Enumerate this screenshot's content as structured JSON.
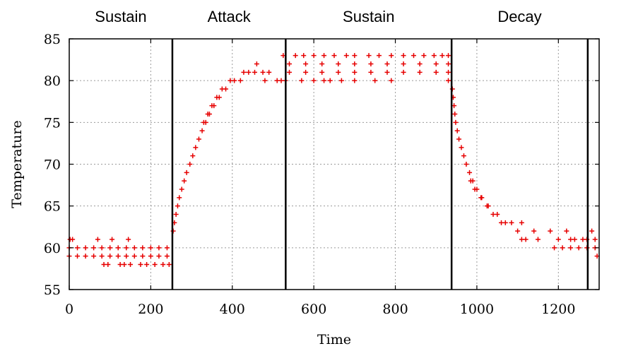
{
  "chart_data": {
    "type": "scatter",
    "title": "",
    "xlabel": "Time",
    "ylabel": "Temperature",
    "xlim": [
      0,
      1300
    ],
    "ylim": [
      55,
      85
    ],
    "xticks": [
      0,
      200,
      400,
      600,
      800,
      1000,
      1200
    ],
    "yticks": [
      55,
      60,
      65,
      70,
      75,
      80,
      85
    ],
    "grid": true,
    "marker": "+",
    "marker_color": "#e60000",
    "phase_boundaries": [
      253,
      531,
      938,
      1272
    ],
    "phases": [
      {
        "label": "Sustain",
        "x_start": 0,
        "x_end": 253
      },
      {
        "label": "Attack",
        "x_start": 253,
        "x_end": 531
      },
      {
        "label": "Sustain",
        "x_start": 531,
        "x_end": 938
      },
      {
        "label": "Decay",
        "x_start": 938,
        "x_end": 1272
      }
    ],
    "series": [
      {
        "points": [
          [
            0,
            60
          ],
          [
            20,
            60
          ],
          [
            40,
            60
          ],
          [
            60,
            60
          ],
          [
            80,
            60
          ],
          [
            100,
            60
          ],
          [
            120,
            60
          ],
          [
            140,
            60
          ],
          [
            160,
            60
          ],
          [
            180,
            60
          ],
          [
            200,
            60
          ],
          [
            220,
            60
          ],
          [
            240,
            60
          ],
          [
            0,
            59
          ],
          [
            20,
            59
          ],
          [
            40,
            59
          ],
          [
            60,
            59
          ],
          [
            80,
            59
          ],
          [
            100,
            59
          ],
          [
            120,
            59
          ],
          [
            140,
            59
          ],
          [
            160,
            59
          ],
          [
            180,
            59
          ],
          [
            200,
            59
          ],
          [
            220,
            59
          ],
          [
            240,
            59
          ],
          [
            2,
            61
          ],
          [
            8,
            61
          ],
          [
            70,
            61
          ],
          [
            105,
            61
          ],
          [
            145,
            61
          ],
          [
            85,
            58
          ],
          [
            95,
            58
          ],
          [
            125,
            58
          ],
          [
            135,
            58
          ],
          [
            150,
            58
          ],
          [
            175,
            58
          ],
          [
            190,
            58
          ],
          [
            210,
            58
          ],
          [
            230,
            58
          ],
          [
            245,
            58
          ],
          [
            255,
            62
          ],
          [
            258,
            63
          ],
          [
            262,
            64
          ],
          [
            266,
            65
          ],
          [
            270,
            66
          ],
          [
            276,
            67
          ],
          [
            282,
            68
          ],
          [
            288,
            69
          ],
          [
            296,
            70
          ],
          [
            303,
            71
          ],
          [
            310,
            72
          ],
          [
            318,
            73
          ],
          [
            326,
            74
          ],
          [
            335,
            75
          ],
          [
            344,
            76
          ],
          [
            355,
            77
          ],
          [
            368,
            78
          ],
          [
            384,
            79
          ],
          [
            405,
            80
          ],
          [
            428,
            81
          ],
          [
            460,
            82
          ],
          [
            330,
            75
          ],
          [
            340,
            76
          ],
          [
            350,
            77
          ],
          [
            362,
            78
          ],
          [
            375,
            79
          ],
          [
            395,
            80
          ],
          [
            420,
            80
          ],
          [
            440,
            81
          ],
          [
            455,
            81
          ],
          [
            475,
            81
          ],
          [
            490,
            81
          ],
          [
            520,
            80
          ],
          [
            510,
            80
          ],
          [
            480,
            80
          ],
          [
            540,
            82
          ],
          [
            580,
            82
          ],
          [
            620,
            82
          ],
          [
            660,
            82
          ],
          [
            700,
            82
          ],
          [
            740,
            82
          ],
          [
            780,
            82
          ],
          [
            820,
            82
          ],
          [
            860,
            82
          ],
          [
            900,
            82
          ],
          [
            930,
            82
          ],
          [
            540,
            81
          ],
          [
            580,
            81
          ],
          [
            620,
            81
          ],
          [
            660,
            81
          ],
          [
            700,
            81
          ],
          [
            740,
            81
          ],
          [
            780,
            81
          ],
          [
            820,
            81
          ],
          [
            860,
            81
          ],
          [
            900,
            81
          ],
          [
            930,
            81
          ],
          [
            525,
            83
          ],
          [
            555,
            83
          ],
          [
            575,
            83
          ],
          [
            600,
            83
          ],
          [
            625,
            83
          ],
          [
            650,
            83
          ],
          [
            680,
            83
          ],
          [
            700,
            83
          ],
          [
            735,
            83
          ],
          [
            760,
            83
          ],
          [
            790,
            83
          ],
          [
            820,
            83
          ],
          [
            845,
            83
          ],
          [
            870,
            83
          ],
          [
            895,
            83
          ],
          [
            915,
            83
          ],
          [
            930,
            83
          ],
          [
            530,
            80
          ],
          [
            570,
            80
          ],
          [
            600,
            80
          ],
          [
            625,
            80
          ],
          [
            640,
            80
          ],
          [
            668,
            80
          ],
          [
            700,
            80
          ],
          [
            750,
            80
          ],
          [
            790,
            80
          ],
          [
            930,
            80
          ],
          [
            940,
            79
          ],
          [
            942,
            78
          ],
          [
            944,
            77
          ],
          [
            946,
            76
          ],
          [
            948,
            75
          ],
          [
            952,
            74
          ],
          [
            956,
            73
          ],
          [
            962,
            72
          ],
          [
            968,
            71
          ],
          [
            974,
            70
          ],
          [
            982,
            69
          ],
          [
            990,
            68
          ],
          [
            1000,
            67
          ],
          [
            1012,
            66
          ],
          [
            1028,
            65
          ],
          [
            1050,
            64
          ],
          [
            1070,
            63
          ],
          [
            1110,
            63
          ],
          [
            1140,
            62
          ],
          [
            1180,
            62
          ],
          [
            1220,
            62
          ],
          [
            1260,
            61
          ],
          [
            1290,
            61
          ],
          [
            985,
            68
          ],
          [
            995,
            67
          ],
          [
            1010,
            66
          ],
          [
            1025,
            65
          ],
          [
            1040,
            64
          ],
          [
            1060,
            63
          ],
          [
            1085,
            63
          ],
          [
            1100,
            62
          ],
          [
            1150,
            61
          ],
          [
            1200,
            61
          ],
          [
            1240,
            61
          ],
          [
            1110,
            61
          ],
          [
            1120,
            61
          ],
          [
            1190,
            60
          ],
          [
            1210,
            60
          ],
          [
            1230,
            60
          ],
          [
            1250,
            60
          ],
          [
            1270,
            60
          ],
          [
            1290,
            60
          ],
          [
            1295,
            59
          ],
          [
            1282,
            62
          ],
          [
            1230,
            61
          ],
          [
            1270,
            61
          ]
        ]
      }
    ]
  }
}
